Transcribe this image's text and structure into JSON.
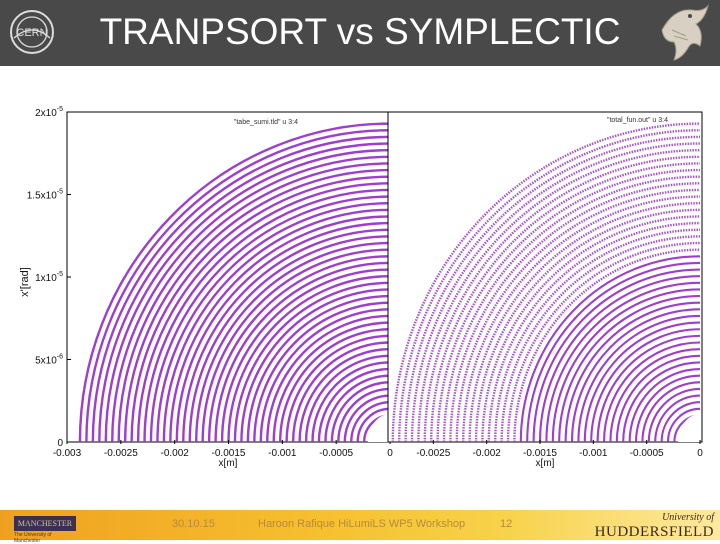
{
  "header": {
    "title": "TRANPSORT vs SYMPLECTIC",
    "colors": {
      "background": "#494949",
      "title": "#ffffff"
    }
  },
  "footer": {
    "date": "30.10.15",
    "author": "Haroon Rafique HiLumiLS WP5 Workshop",
    "page": "12",
    "left_logo_text": "MANCHESTER",
    "left_logo_sub": "The University of Manchester",
    "right_logo_top": "University of",
    "right_logo_bottom": "HUDDERSFIELD",
    "colors": {
      "gradient_start": "#f0a020",
      "gradient_end": "#ffe9a0",
      "text": "#b88a3a"
    }
  },
  "chart_data": [
    {
      "type": "scatter",
      "xlabel": "x[m]",
      "ylabel": "x'[rad]",
      "legend": "\"tabe_sumi.tld\" u 3:4",
      "legend_placement": "top-right",
      "xlim": [
        -0.003,
        0
      ],
      "ylim": [
        0,
        2e-05
      ],
      "x_ticks": [
        "-0.003",
        "-0.0025",
        "-0.002",
        "-0.0015",
        "-0.001",
        "-0.0005",
        "0"
      ],
      "y_ticks": [
        "0",
        "5x10-6",
        "1x10-5",
        "1.5x10-5",
        "2x10-5"
      ],
      "grid": false,
      "color": "#9933cc",
      "pattern": "concentric smooth invariant rings (regular)"
    },
    {
      "type": "scatter",
      "xlabel": "x[m]",
      "legend": "\"total_fun.out\" u 3:4",
      "legend_placement": "top-right",
      "xlim": [
        -0.003,
        0
      ],
      "ylim": [
        0,
        2e-05
      ],
      "x_ticks": [
        "-0.0025",
        "-0.002",
        "-0.0015",
        "-0.001",
        "-0.0005",
        "0"
      ],
      "grid": false,
      "color": "#9933cc",
      "pattern": "concentric rings, inner regular, outer chaotic"
    }
  ]
}
